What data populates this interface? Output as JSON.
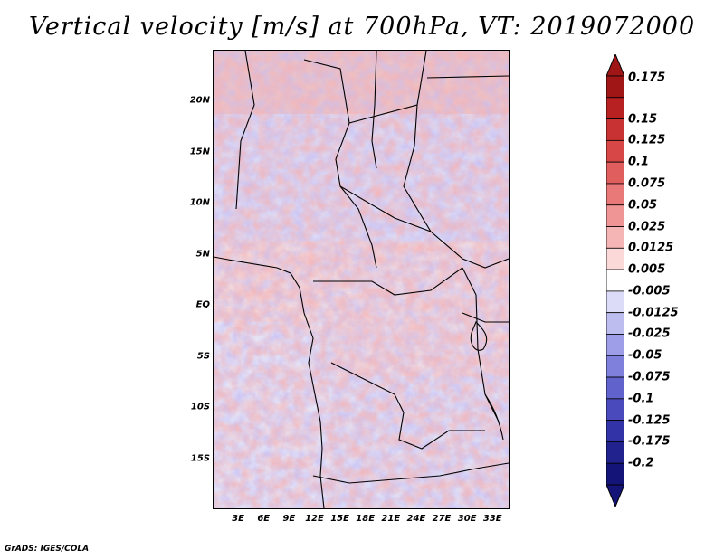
{
  "title": "Vertical velocity [m/s] at 700hPa, VT: 2019072000",
  "footer": "GrADS: IGES/COLA",
  "map": {
    "variable": "Vertical velocity",
    "units": "m/s",
    "level": "700hPa",
    "valid_time": "2019072000",
    "lat_labels": [
      "20N",
      "15N",
      "10N",
      "5N",
      "EQ",
      "5S",
      "10S",
      "15S"
    ],
    "lat_values": [
      20,
      15,
      10,
      5,
      0,
      -5,
      -10,
      -15
    ],
    "lon_labels": [
      "3E",
      "6E",
      "9E",
      "12E",
      "15E",
      "18E",
      "21E",
      "24E",
      "27E",
      "30E",
      "33E"
    ],
    "lon_values": [
      3,
      6,
      9,
      12,
      15,
      18,
      21,
      24,
      27,
      30,
      33
    ],
    "lon_range": [
      0,
      35
    ],
    "lat_range": [
      -20,
      25
    ]
  },
  "colorbar": {
    "labels": [
      "0.175",
      "0.15",
      "0.125",
      "0.1",
      "0.075",
      "0.05",
      "0.025",
      "0.0125",
      "0.005",
      "-0.005",
      "-0.0125",
      "-0.025",
      "-0.05",
      "-0.075",
      "-0.1",
      "-0.125",
      "-0.175",
      "-0.2"
    ],
    "colors": [
      "#a01616",
      "#b82121",
      "#c93232",
      "#d74747",
      "#e05e5e",
      "#e97878",
      "#f09595",
      "#f6b5b5",
      "#fbd9d9",
      "#ffffff",
      "#dcdcf8",
      "#bdbdf0",
      "#9d9de8",
      "#7f7fdc",
      "#6262cc",
      "#4a4abd",
      "#3333a8",
      "#22228f",
      "#141478"
    ],
    "top_arrow_color": "#a01616",
    "bottom_arrow_color": "#141478"
  }
}
